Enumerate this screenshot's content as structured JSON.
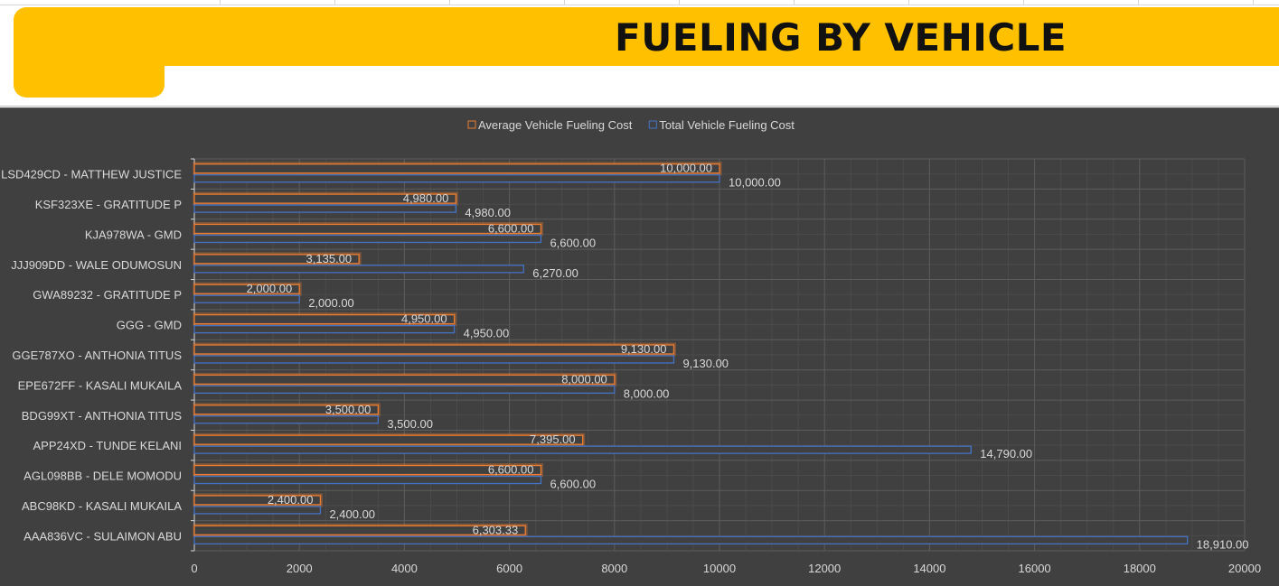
{
  "header": {
    "title": "FUELING BY VEHICLE"
  },
  "colors": {
    "banner": "#ffc000",
    "chart_bg": "#404040",
    "avg_series": "#ed7d31",
    "total_series": "#4472c4",
    "text": "#d9d9d9"
  },
  "chart_data": {
    "type": "bar",
    "orientation": "horizontal",
    "categories": [
      "LSD429CD - MATTHEW JUSTICE",
      "KSF323XE - GRATITUDE P",
      "KJA978WA - GMD",
      "JJJ909DD - WALE ODUMOSUN",
      "GWA89232 - GRATITUDE P",
      "GGG - GMD",
      "GGE787XO - ANTHONIA TITUS",
      "EPE672FF - KASALI MUKAILA",
      "BDG99XT - ANTHONIA TITUS",
      "APP24XD - TUNDE KELANI",
      "AGL098BB - DELE MOMODU",
      "ABC98KD - KASALI MUKAILA",
      "AAA836VC - SULAIMON ABU"
    ],
    "series": [
      {
        "name": "Average Vehicle Fueling Cost",
        "values": [
          10000,
          4980,
          6600,
          3135,
          2000,
          4950,
          9130,
          8000,
          3500,
          7395,
          6600,
          2400,
          6303.33
        ],
        "labels": [
          "10,000.00",
          "4,980.00",
          "6,600.00",
          "3,135.00",
          "2,000.00",
          "4,950.00",
          "9,130.00",
          "8,000.00",
          "3,500.00",
          "7,395.00",
          "6,600.00",
          "2,400.00",
          "6,303.33"
        ]
      },
      {
        "name": "Total Vehicle Fueling Cost",
        "values": [
          10000,
          4980,
          6600,
          6270,
          2000,
          4950,
          9130,
          8000,
          3500,
          14790,
          6600,
          2400,
          18910
        ],
        "labels": [
          "10,000.00",
          "4,980.00",
          "6,600.00",
          "6,270.00",
          "2,000.00",
          "4,950.00",
          "9,130.00",
          "8,000.00",
          "3,500.00",
          "14,790.00",
          "6,600.00",
          "2,400.00",
          "18,910.00"
        ]
      }
    ],
    "xlim": [
      0,
      20000
    ],
    "xticks": [
      "0",
      "2000",
      "4000",
      "6000",
      "8000",
      "10000",
      "12000",
      "14000",
      "16000",
      "18000",
      "20000"
    ],
    "legend_position": "top",
    "grid": true
  }
}
